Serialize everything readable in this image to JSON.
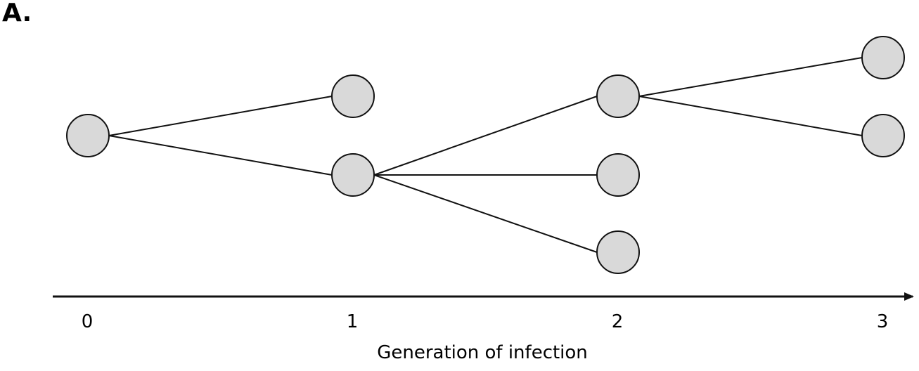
{
  "panel_label": "A.",
  "axis": {
    "title": "Generation of infection",
    "ticks": [
      "0",
      "1",
      "2",
      "3"
    ]
  },
  "tree": {
    "nodes": [
      {
        "id": "g0",
        "generation": 0
      },
      {
        "id": "g1a",
        "generation": 1
      },
      {
        "id": "g1b",
        "generation": 1
      },
      {
        "id": "g2a",
        "generation": 2
      },
      {
        "id": "g2b",
        "generation": 2
      },
      {
        "id": "g2c",
        "generation": 2
      },
      {
        "id": "g3a",
        "generation": 3
      },
      {
        "id": "g3b",
        "generation": 3
      }
    ],
    "edges": [
      {
        "from": "g0",
        "to": "g1a"
      },
      {
        "from": "g0",
        "to": "g1b"
      },
      {
        "from": "g1b",
        "to": "g2a"
      },
      {
        "from": "g1b",
        "to": "g2b"
      },
      {
        "from": "g1b",
        "to": "g2c"
      },
      {
        "from": "g2a",
        "to": "g3a"
      },
      {
        "from": "g2a",
        "to": "g3b"
      }
    ]
  },
  "colors": {
    "node_fill": "#d9d9d9",
    "stroke": "#111111"
  }
}
